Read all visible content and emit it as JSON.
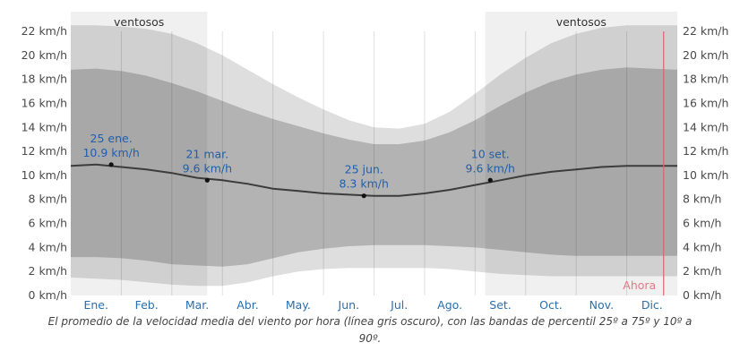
{
  "chart_data": {
    "type": "area",
    "title": "",
    "xlabel": "",
    "ylabel": "",
    "y_unit": "km/h",
    "ylim": [
      0,
      22
    ],
    "y_ticks": [
      "0 km/h",
      "2 km/h",
      "4 km/h",
      "6 km/h",
      "8 km/h",
      "10 km/h",
      "12 km/h",
      "14 km/h",
      "16 km/h",
      "18 km/h",
      "20 km/h",
      "22 km/h"
    ],
    "months": [
      "Ene.",
      "Feb.",
      "Mar.",
      "Abr.",
      "May.",
      "Jun.",
      "Jul.",
      "Ago.",
      "Set.",
      "Oct.",
      "Nov.",
      "Dic."
    ],
    "x": [
      0.0,
      0.5,
      1.0,
      1.5,
      2.0,
      2.5,
      3.0,
      3.5,
      4.0,
      4.5,
      5.0,
      5.5,
      6.0,
      6.5,
      7.0,
      7.5,
      8.0,
      8.5,
      9.0,
      9.5,
      10.0,
      10.5,
      11.0,
      11.5,
      12.0
    ],
    "series": [
      {
        "name": "",
        "role": "p90",
        "values": [
          22.5,
          22.5,
          22.4,
          22.2,
          21.8,
          21.0,
          20.0,
          18.8,
          17.6,
          16.5,
          15.5,
          14.6,
          14.0,
          13.9,
          14.3,
          15.3,
          16.8,
          18.4,
          19.8,
          21.0,
          21.8,
          22.3,
          22.5,
          22.5,
          22.5
        ]
      },
      {
        "name": "",
        "role": "p75",
        "values": [
          18.8,
          18.9,
          18.7,
          18.3,
          17.7,
          17.0,
          16.2,
          15.4,
          14.7,
          14.1,
          13.5,
          13.0,
          12.6,
          12.6,
          12.9,
          13.6,
          14.6,
          15.8,
          16.9,
          17.8,
          18.4,
          18.8,
          19.0,
          18.9,
          18.8
        ]
      },
      {
        "name": "",
        "role": "mean",
        "values": [
          10.8,
          10.9,
          10.7,
          10.5,
          10.2,
          9.8,
          9.6,
          9.3,
          8.9,
          8.7,
          8.5,
          8.4,
          8.3,
          8.3,
          8.5,
          8.8,
          9.2,
          9.6,
          10.0,
          10.3,
          10.5,
          10.7,
          10.8,
          10.8,
          10.8
        ]
      },
      {
        "name": "",
        "role": "p25",
        "values": [
          3.2,
          3.2,
          3.1,
          2.9,
          2.6,
          2.5,
          2.4,
          2.6,
          3.1,
          3.6,
          3.9,
          4.1,
          4.2,
          4.2,
          4.2,
          4.1,
          4.0,
          3.8,
          3.6,
          3.4,
          3.3,
          3.3,
          3.3,
          3.3,
          3.3
        ]
      },
      {
        "name": "",
        "role": "p10",
        "values": [
          1.5,
          1.4,
          1.3,
          1.1,
          0.9,
          0.8,
          0.8,
          1.1,
          1.6,
          2.0,
          2.2,
          2.3,
          2.3,
          2.3,
          2.3,
          2.2,
          2.0,
          1.8,
          1.7,
          1.6,
          1.6,
          1.6,
          1.6,
          1.6,
          1.6
        ]
      }
    ],
    "seasons": [
      {
        "label": "ventosos",
        "start": 0.0,
        "end": 2.7
      },
      {
        "label": "ventosos",
        "start": 8.2,
        "end": 12.0
      }
    ],
    "annotations": [
      {
        "x": 0.8,
        "y": 10.9,
        "date": "25 ene.",
        "value": "10.9 km/h"
      },
      {
        "x": 2.7,
        "y": 9.6,
        "date": "21 mar.",
        "value": "9.6 km/h"
      },
      {
        "x": 5.8,
        "y": 8.3,
        "date": "25 jun.",
        "value": "8.3 km/h"
      },
      {
        "x": 8.3,
        "y": 9.6,
        "date": "10 set.",
        "value": "9.6 km/h"
      }
    ],
    "now": {
      "label": "Ahora",
      "x": 11.73
    },
    "colors": {
      "p10_p90": "#dedede",
      "p25_p75": "#b3b3b3",
      "mean_line": "#3c3c3c",
      "season_band": "#000000",
      "now_line": "#e06070",
      "month_text": "#2a6fb0",
      "annotation_text": "#1f5fae"
    }
  },
  "caption": "El promedio de la velocidad media del viento por hora (línea gris oscuro), con las bandas de percentil 25º a 75º y 10º a 90º."
}
